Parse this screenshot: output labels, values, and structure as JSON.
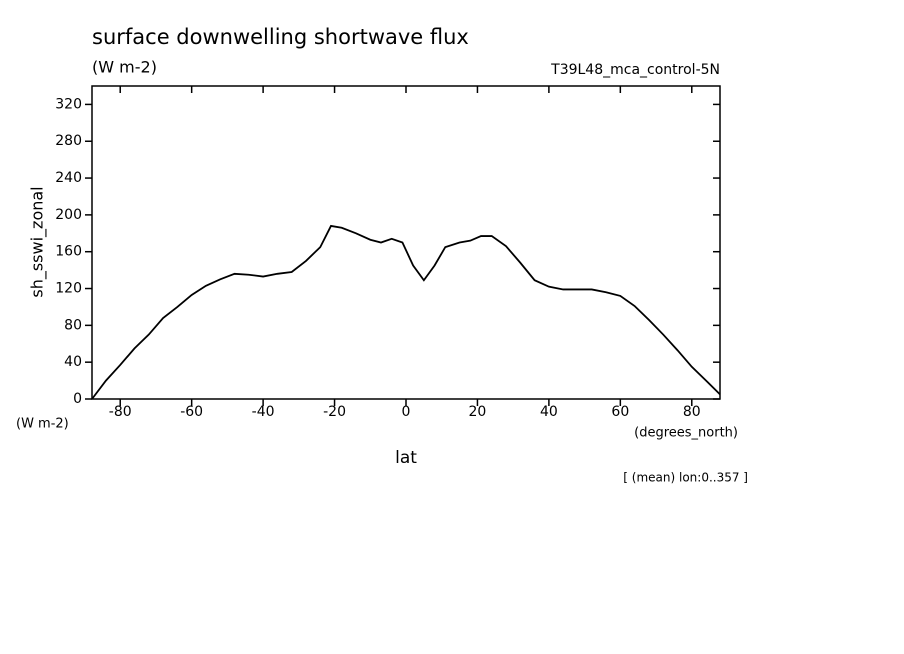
{
  "chart_data": {
    "type": "line",
    "title": "surface downwelling shortwave flux",
    "subtitle": "(W m-2)",
    "dataset": "T39L48_mca_control-5N",
    "ylabel": "sh_sswi_zonal",
    "y_units": "(W m-2)",
    "xlabel": "lat",
    "x_units": "(degrees_north)",
    "note": "[ (mean) lon:0..357 ]",
    "x": [
      -87.9,
      -84,
      -80,
      -76,
      -72,
      -68,
      -64,
      -60,
      -56,
      -52,
      -48,
      -44,
      -40,
      -36,
      -32,
      -28,
      -24,
      -21,
      -18,
      -14,
      -10,
      -7,
      -4,
      -1,
      2,
      5,
      8,
      11,
      15,
      18,
      21,
      24,
      28,
      32,
      36,
      40,
      44,
      48,
      52,
      56,
      60,
      64,
      68,
      72,
      76,
      80,
      84,
      87.9
    ],
    "series": [
      {
        "name": "sh_sswi_zonal",
        "color": "#000000",
        "values": [
          0,
          20,
          37,
          55,
          70,
          88,
          100,
          113,
          123,
          130,
          136,
          135,
          133,
          136,
          138,
          150,
          165,
          188,
          186,
          180,
          173,
          170,
          174,
          170,
          145,
          129,
          145,
          165,
          170,
          172,
          177,
          177,
          166,
          148,
          129,
          122,
          119,
          119,
          119,
          116,
          112,
          101,
          86,
          70,
          53,
          35,
          20,
          5
        ]
      }
    ],
    "xlim": [
      -87.9,
      87.9
    ],
    "xticks": [
      -80,
      -60,
      -40,
      -20,
      0,
      20,
      40,
      60,
      80
    ],
    "ylim": [
      0,
      340
    ],
    "yticks": [
      0,
      40,
      80,
      120,
      160,
      200,
      240,
      280,
      320
    ]
  }
}
